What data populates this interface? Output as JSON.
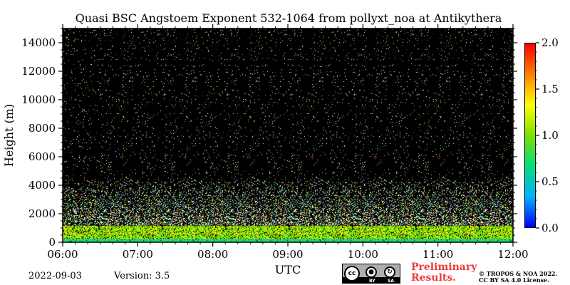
{
  "chart_data": {
    "type": "heatmap",
    "title": "Quasi BSC Angstoem Exponent 532-1064 from pollyxt_noa at Antikythera",
    "xlabel": "UTC",
    "ylabel": "Height (m)",
    "x_ticks": [
      "06:00",
      "07:00",
      "08:00",
      "09:00",
      "10:00",
      "11:00",
      "12:00"
    ],
    "x_range": [
      "06:00",
      "12:00"
    ],
    "y_ticks": [
      "0",
      "2000",
      "4000",
      "6000",
      "8000",
      "10000",
      "12000",
      "14000"
    ],
    "ylim": [
      0,
      15000
    ],
    "colorbar": {
      "ticks": [
        "0.0",
        "0.5",
        "1.0",
        "1.5",
        "2.0"
      ],
      "range": [
        0.0,
        2.0
      ],
      "colormap": [
        "#0000ff",
        "#00b4ff",
        "#00e07a",
        "#7be000",
        "#ffff00",
        "#ff8000",
        "#ff0000"
      ]
    },
    "background_color": "#000000",
    "profile_summary": [
      {
        "height_range_m": [
          0,
          300
        ],
        "value": 0.7,
        "note": "blue/cyan dominant near surface"
      },
      {
        "height_range_m": [
          300,
          1200
        ],
        "value": 1.1,
        "note": "green/yellow aerosol layer"
      },
      {
        "height_range_m": [
          1200,
          4500
        ],
        "value": 1.0,
        "note": "sparse mixed points"
      },
      {
        "height_range_m": [
          4500,
          15000
        ],
        "value": 1.0,
        "note": "very sparse noise points"
      }
    ]
  },
  "footer": {
    "date": "2022-09-03",
    "version": "Version: 3.5",
    "license_badge": {
      "by": "BY",
      "sa": "SA"
    },
    "preliminary_line1": "Preliminary",
    "preliminary_line2": "Results.",
    "copyright_line1": "© TROPOS & NOA 2022.",
    "copyright_line2": "CC BY SA 4.0 License."
  }
}
